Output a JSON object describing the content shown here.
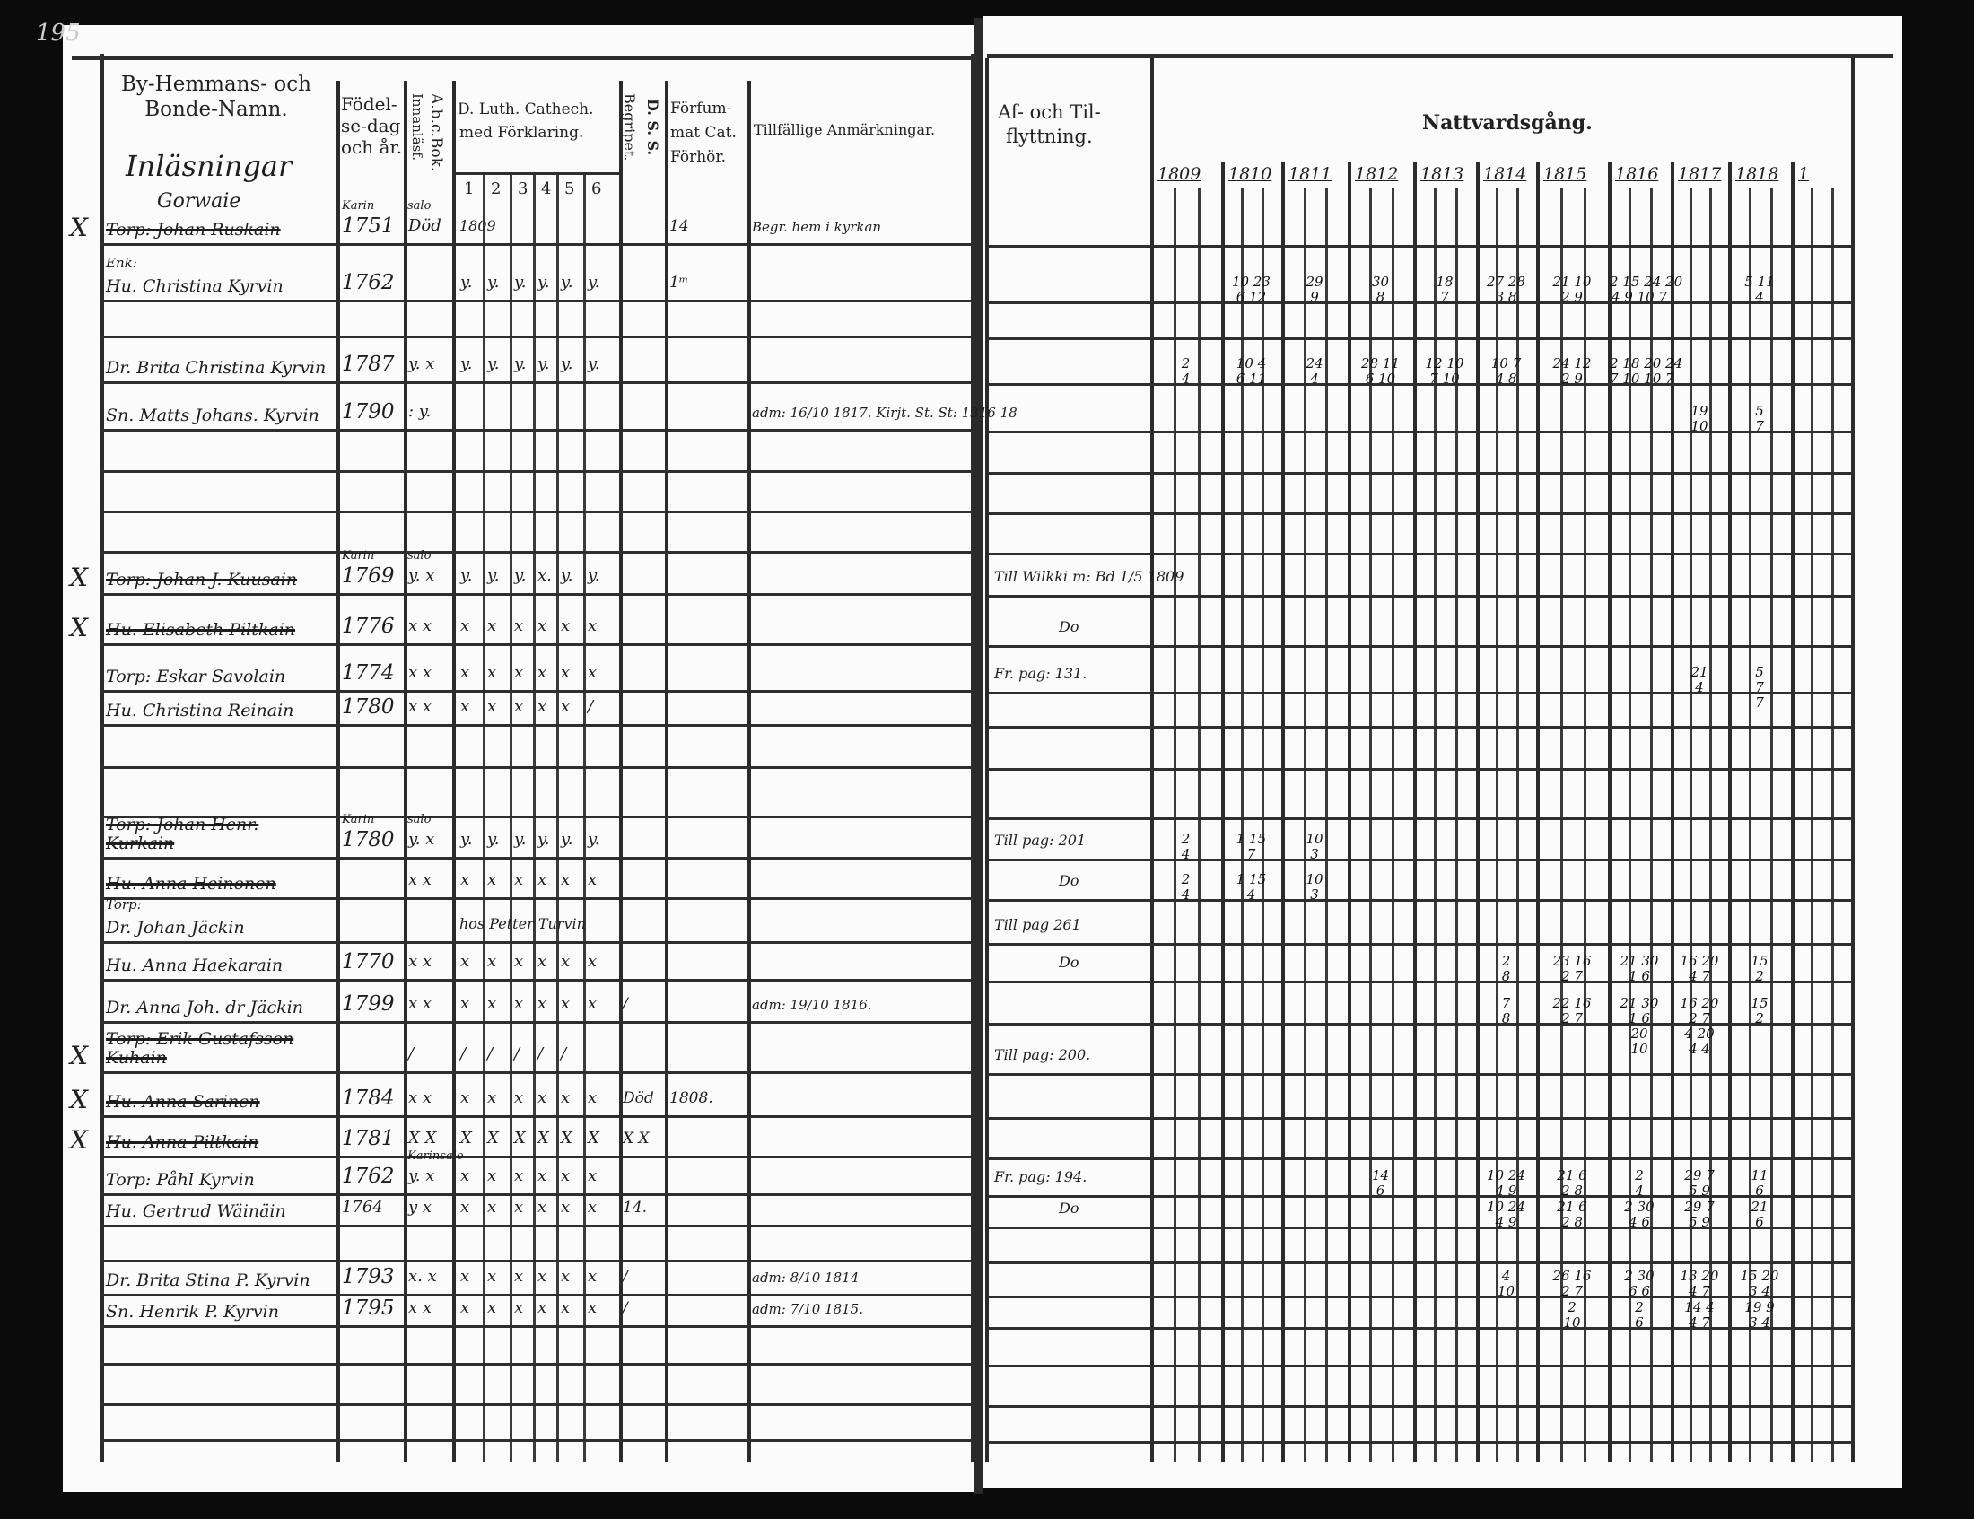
{
  "page_number": "195",
  "left_header": {
    "names": "By-Hemmans- och\nBonde-Namn.",
    "birth": "Födel-\nse-dag\noch år.",
    "abc": "A.b.c.Bok.",
    "innanlas": "Innanläsf.",
    "catechism": "D. Luth. Cathech.",
    "catechism_2": "med Förklaring.",
    "catechism_parts": [
      "1",
      "2",
      "3",
      "4",
      "5",
      "6"
    ],
    "begripet": "Begripet.",
    "dss": "D. S. S.",
    "forsummat": "Förfum-\nmat Cat.\nFörhör.",
    "remarks": "Tillfällige Anmärkningar."
  },
  "village": {
    "line1": "Inläsningar",
    "line2": "Gorwaie"
  },
  "right_header": {
    "moves": "Af- och Til-\nflyttning.",
    "communion": "Nattvardsgång.",
    "years": [
      "1809",
      "1810",
      "1811",
      "1812",
      "1813",
      "1814",
      "1815",
      "1816",
      "1817",
      "1818",
      "1"
    ]
  },
  "entries": [
    {
      "mark": "X",
      "name": "Torp: Johan Ruskain",
      "crossed": true,
      "birth": "1751",
      "birth_note": "Karin",
      "abc": "Död",
      "abc_note": "salo",
      "catech": "1809",
      "forsummat": "14",
      "remarks": "Begr. hem i kyrkan",
      "moves": "",
      "communion": []
    },
    {
      "mark": "",
      "prefix": "Enk:",
      "name": "Hu. Christina Kyrvin",
      "crossed": false,
      "birth": "1762",
      "abc": "",
      "catech": "y. y. y. y. y. y.",
      "forsummat": "1ᵐ",
      "remarks": "",
      "moves": "",
      "communion": [
        "",
        "10 23\n6 12",
        "29\n9",
        "30\n8",
        "18\n7",
        "27 28\n3 8",
        "21 10\n2 9",
        "2 15 24 20\n4 9 10 7",
        "",
        "5 11\n4",
        ""
      ]
    },
    {
      "mark": "",
      "name": "Dr. Brita Christina Kyrvin",
      "crossed": false,
      "birth": "1787",
      "abc": "y. x",
      "catech": "y. y. y. y. y. y.",
      "remarks": "",
      "moves": "",
      "communion": [
        "2\n4",
        "10 4\n6 11",
        "24\n4",
        "28 11\n6 10",
        "12 10\n7 10",
        "10 7\n4 8",
        "24 12\n2 9",
        "2 18 20 24\n7 10 10 7",
        "",
        "",
        ""
      ]
    },
    {
      "mark": "",
      "name": "Sn. Matts Johans. Kyrvin",
      "crossed": false,
      "birth": "1790",
      "abc": ": y.",
      "catech": "",
      "remarks": "adm: 16/10 1817. Kirjt. St. St: 1316 18",
      "moves": "",
      "communion": [
        "",
        "",
        "",
        "",
        "",
        "",
        "",
        "",
        "19\n10",
        "5\n7",
        ""
      ]
    },
    {
      "mark": "X",
      "name": "Torp: Johan J. Kuusain",
      "crossed": true,
      "birth": "1769",
      "birth_note": "Karin",
      "abc": "y. x",
      "abc_note": "salo",
      "catech": "y. y. y. x. y. y.",
      "remarks": "",
      "moves": "Till Wilkki m: Bd 1/5 1809",
      "communion": []
    },
    {
      "mark": "X",
      "name": "Hu. Elisabeth Piltkain",
      "crossed": true,
      "birth": "1776",
      "abc": "x x",
      "catech": "x x x x x x",
      "remarks": "",
      "moves": "Do",
      "communion": []
    },
    {
      "mark": "",
      "name": "Torp: Eskar Savolain",
      "crossed": false,
      "birth": "1774",
      "abc": "x x",
      "catech": "x x x x x x",
      "remarks": "",
      "moves": "Fr. pag: 131.",
      "communion": [
        "",
        "",
        "",
        "",
        "",
        "",
        "",
        "",
        "21\n4",
        "5\n7\n7",
        ""
      ]
    },
    {
      "mark": "",
      "name": "Hu. Christina Reinain",
      "crossed": false,
      "birth": "1780",
      "abc": "x x",
      "catech": "x x x x x /",
      "remarks": "",
      "moves": "",
      "communion": []
    },
    {
      "mark": "",
      "name": "Torp: Johan Henr. Kurkain",
      "crossed": true,
      "birth": "1780",
      "birth_note": "Karin",
      "abc": "y. x",
      "abc_note": "salo",
      "catech": "y. y. y. y. y. y.",
      "remarks": "",
      "moves": "Till pag: 201",
      "communion": [
        "2\n4",
        "1 15\n7",
        "10\n3",
        "",
        "",
        "",
        "",
        "",
        "",
        "",
        ""
      ]
    },
    {
      "mark": "",
      "name": "Hu. Anna Heinonen",
      "crossed": true,
      "birth": "",
      "abc": "x x",
      "catech": "x x x x x x",
      "remarks": "",
      "moves": "Do",
      "communion": [
        "2\n4",
        "1 15\n4",
        "10\n3",
        "",
        "",
        "",
        "",
        "",
        "",
        "",
        ""
      ]
    },
    {
      "mark": "",
      "prefix": "Torp:",
      "name": "Dr. Johan Jäckin",
      "crossed": false,
      "birth": "",
      "abc": "",
      "catech": "hos Petter Turvin",
      "remarks": "",
      "moves": "Till pag 261",
      "communion": []
    },
    {
      "mark": "",
      "name": "Hu. Anna Haekarain",
      "crossed": false,
      "birth": "1770",
      "abc": "x x",
      "catech": "x x x x x x",
      "remarks": "",
      "moves": "Do",
      "communion": [
        "",
        "",
        "",
        "",
        "",
        "2\n8",
        "23 16\n2 7",
        "21 30\n1 6",
        "16 20\n4 7",
        "15\n2",
        ""
      ]
    },
    {
      "mark": "",
      "name": "Dr. Anna Joh. dr Jäckin",
      "crossed": false,
      "birth": "1799",
      "abc": "x x",
      "catech": "x x x x x x",
      "begripet": "/",
      "remarks": "adm: 19/10 1816.",
      "moves": "",
      "communion": [
        "",
        "",
        "",
        "",
        "",
        "7\n8",
        "22 16\n2 7",
        "21 30\n1 6\n20\n10",
        "16 20\n2 7\n4 20\n4 4",
        "15\n2",
        ""
      ]
    },
    {
      "mark": "X",
      "name": "Torp: Erik Gustafsson Kuhain",
      "crossed": true,
      "birth": "",
      "abc": "/",
      "catech": "/ / / / /",
      "remarks": "",
      "moves": "Till pag: 200.",
      "communion": []
    },
    {
      "mark": "X",
      "name": "Hu. Anna Sarinen",
      "crossed": true,
      "birth": "1784",
      "abc": "x x",
      "catech": "x x x x x x",
      "dss": "Död",
      "forsummat": "1808.",
      "remarks": "",
      "moves": "",
      "communion": []
    },
    {
      "mark": "X",
      "name": "Hu. Anna Piltkain",
      "crossed": true,
      "birth": "1781",
      "abc": "X X",
      "catech": "X X X X X X",
      "begripet": "X X",
      "remarks": "",
      "moves": "",
      "communion": []
    },
    {
      "mark": "",
      "name": "Torp: Påhl Kyrvin",
      "crossed": false,
      "birth": "1762",
      "abc": "y. x",
      "abc_note": "Karinsalo",
      "catech": "x x x x x x",
      "remarks": "",
      "moves": "Fr. pag: 194.",
      "communion": [
        "",
        "",
        "",
        "14\n6",
        "",
        "10 24\n4 9",
        "21 6\n2 8",
        "2\n4",
        "29 7\n5 9",
        "11\n6",
        ""
      ]
    },
    {
      "mark": "",
      "name": "Hu. Gertrud Wäinäin",
      "crossed": false,
      "birth": "",
      "birth_note": "1764",
      "abc": "y x",
      "catech": "x x x x x x",
      "begripet": "14.",
      "remarks": "",
      "moves": "Do",
      "communion": [
        "",
        "",
        "",
        "",
        "",
        "10 24\n4 9",
        "21 6\n2 8",
        "2 30\n4 6",
        "29 7\n5 9",
        "21\n6",
        ""
      ]
    },
    {
      "mark": "",
      "name": "Dr. Brita Stina P. Kyrvin",
      "crossed": false,
      "birth": "1793",
      "abc": "x. x",
      "catech": "x x x x x x",
      "begripet": "/",
      "remarks": "adm: 8/10 1814",
      "moves": "",
      "communion": [
        "",
        "",
        "",
        "",
        "",
        "4\n10",
        "26 16\n2 7",
        "2 30\n6 6",
        "13 20\n4 7",
        "15 20\n3 4",
        ""
      ]
    },
    {
      "mark": "",
      "name": "Sn. Henrik P. Kyrvin",
      "crossed": false,
      "birth": "1795",
      "abc": "x x",
      "catech": "x x x x x x",
      "begripet": "/",
      "remarks": "adm: 7/10 1815.",
      "moves": "",
      "communion": [
        "",
        "",
        "",
        "",
        "",
        "",
        "2\n10",
        "2\n6",
        "14 4\n4 7",
        "19 9\n3 4",
        ""
      ]
    }
  ]
}
